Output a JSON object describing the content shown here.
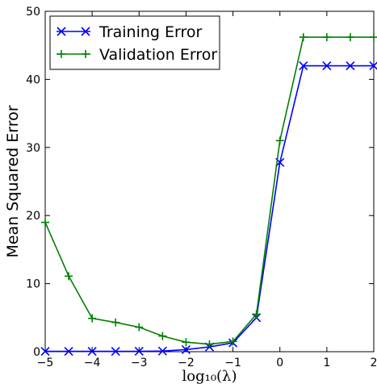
{
  "chart_data": {
    "type": "line",
    "title": "",
    "xlabel": "log₁₀(λ)",
    "ylabel": "Mean Squared Error",
    "xlim": [
      -5,
      2
    ],
    "ylim": [
      0,
      50
    ],
    "xticks": [
      "−5",
      "−4",
      "−3",
      "−2",
      "−1",
      "0",
      "1",
      "2"
    ],
    "yticks": [
      "0",
      "10",
      "20",
      "30",
      "40",
      "50"
    ],
    "grid": false,
    "legend_position": "top-left",
    "x": [
      -5,
      -4.5,
      -4,
      -3.5,
      -3,
      -2.5,
      -2,
      -1.5,
      -1,
      -0.5,
      0,
      0.5,
      1,
      1.5,
      2
    ],
    "series": [
      {
        "name": "Training Error",
        "color": "#0000ff",
        "marker": "x",
        "values": [
          0.05,
          0.05,
          0.05,
          0.05,
          0.06,
          0.1,
          0.3,
          0.7,
          1.3,
          5.0,
          27.8,
          42.0,
          42.0,
          42.0,
          42.0
        ]
      },
      {
        "name": "Validation Error",
        "color": "#008000",
        "marker": "+",
        "values": [
          19.0,
          11.1,
          4.9,
          4.3,
          3.6,
          2.3,
          1.4,
          1.1,
          1.5,
          5.5,
          31.0,
          46.2,
          46.2,
          46.2,
          46.2
        ]
      }
    ]
  }
}
